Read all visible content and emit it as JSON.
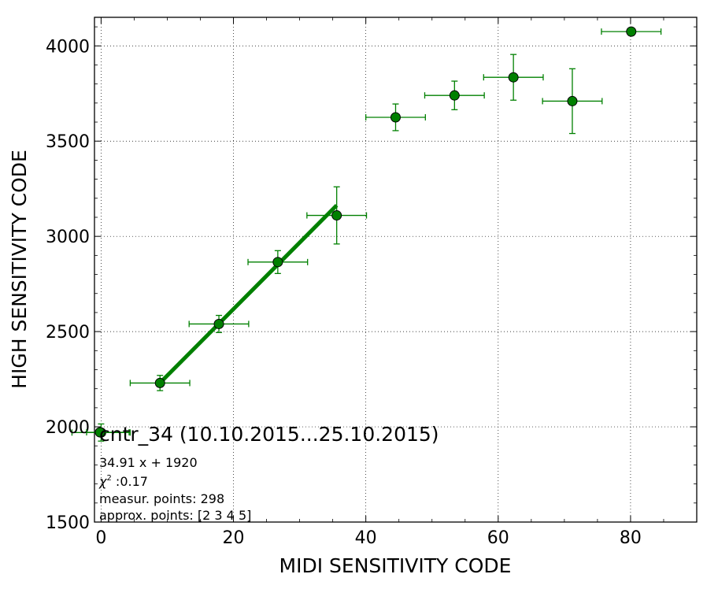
{
  "chart_data": {
    "type": "scatter",
    "title": "",
    "xlabel": "MIDI SENSITIVITY CODE",
    "ylabel": "HIGH SENSITIVITY CODE",
    "xlim": [
      -1,
      90
    ],
    "ylim": [
      1500,
      4150
    ],
    "xticks": [
      0,
      20,
      40,
      60,
      80
    ],
    "yticks": [
      1500,
      2000,
      2500,
      3000,
      3500,
      4000
    ],
    "grid": true,
    "legend_position": "bottom-left",
    "series": [
      {
        "name": "cntr_34 (10.10.2015...25.10.2015)",
        "color": "#008000",
        "marker": "circle",
        "points": [
          {
            "x": 0.0,
            "y": 1970,
            "xerr": 4.4,
            "yerr": 45
          },
          {
            "x": 8.9,
            "y": 2230,
            "xerr": 4.5,
            "yerr": 40
          },
          {
            "x": 17.8,
            "y": 2540,
            "xerr": 4.5,
            "yerr": 45
          },
          {
            "x": 26.7,
            "y": 2865,
            "xerr": 4.5,
            "yerr": 60
          },
          {
            "x": 35.6,
            "y": 3110,
            "xerr": 4.5,
            "yerr": 150
          },
          {
            "x": 44.5,
            "y": 3625,
            "xerr": 4.5,
            "yerr": 70
          },
          {
            "x": 53.4,
            "y": 3740,
            "xerr": 4.5,
            "yerr": 75
          },
          {
            "x": 62.3,
            "y": 3835,
            "xerr": 4.5,
            "yerr": 120
          },
          {
            "x": 71.2,
            "y": 3710,
            "xerr": 4.5,
            "yerr": 170
          },
          {
            "x": 80.1,
            "y": 4075,
            "xerr": 4.5,
            "yerr": 0
          }
        ]
      }
    ],
    "fit_line": {
      "color": "#008000",
      "slope": 34.91,
      "intercept": 1920,
      "x_range": [
        8.9,
        35.6
      ]
    },
    "annotations": {
      "fit_equation": "34.91 x + 1920",
      "chi2_label": "χ",
      "chi2_exp": "2",
      "chi2_value": " :0.17",
      "measur_points": "measur. points: 298",
      "approx_points": "approx. points: [2 3 4 5]"
    }
  }
}
